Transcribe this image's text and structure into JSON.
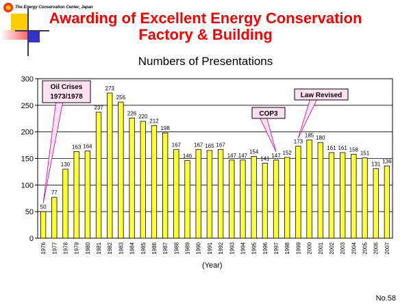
{
  "header": {
    "org": "The Energy Conservation Center, Japan",
    "title_line1": "Awarding of Excellent Energy Conservation",
    "title_line2": "Factory & Building"
  },
  "footer": {
    "page_number": "No.58"
  },
  "colors": {
    "bar": "#ffff33",
    "title": "#ff0000",
    "callout_fill": "#ffe0f0",
    "callout_line": "#cc0088"
  },
  "chart_data": {
    "type": "bar",
    "title": "Numbers of Presentations",
    "xlabel": "(Year)",
    "ylabel": "",
    "ylim": [
      0,
      300
    ],
    "yticks": [
      0,
      50,
      100,
      150,
      200,
      250,
      300
    ],
    "grid": true,
    "categories": [
      "1976",
      "1977",
      "1978",
      "1979",
      "1980",
      "1981",
      "1982",
      "1983",
      "1984",
      "1985",
      "1986",
      "1987",
      "1988",
      "1989",
      "1990",
      "1991",
      "1992",
      "1993",
      "1994",
      "1995",
      "1996",
      "1997",
      "1998",
      "1999",
      "2000",
      "2001",
      "2002",
      "2003",
      "2004",
      "2005",
      "2006",
      "2007"
    ],
    "values": [
      50,
      77,
      130,
      163,
      164,
      237,
      273,
      256,
      226,
      220,
      212,
      198,
      167,
      146,
      167,
      165,
      167,
      147,
      147,
      154,
      141,
      147,
      152,
      173,
      185,
      180,
      161,
      161,
      158,
      151,
      131,
      136
    ],
    "annotations": [
      {
        "label": "Oil Crises\n1973/1978",
        "points_to": "1976"
      },
      {
        "label": "COP3",
        "points_to": "1997"
      },
      {
        "label": "Law Revised",
        "points_to": "1999"
      }
    ]
  }
}
